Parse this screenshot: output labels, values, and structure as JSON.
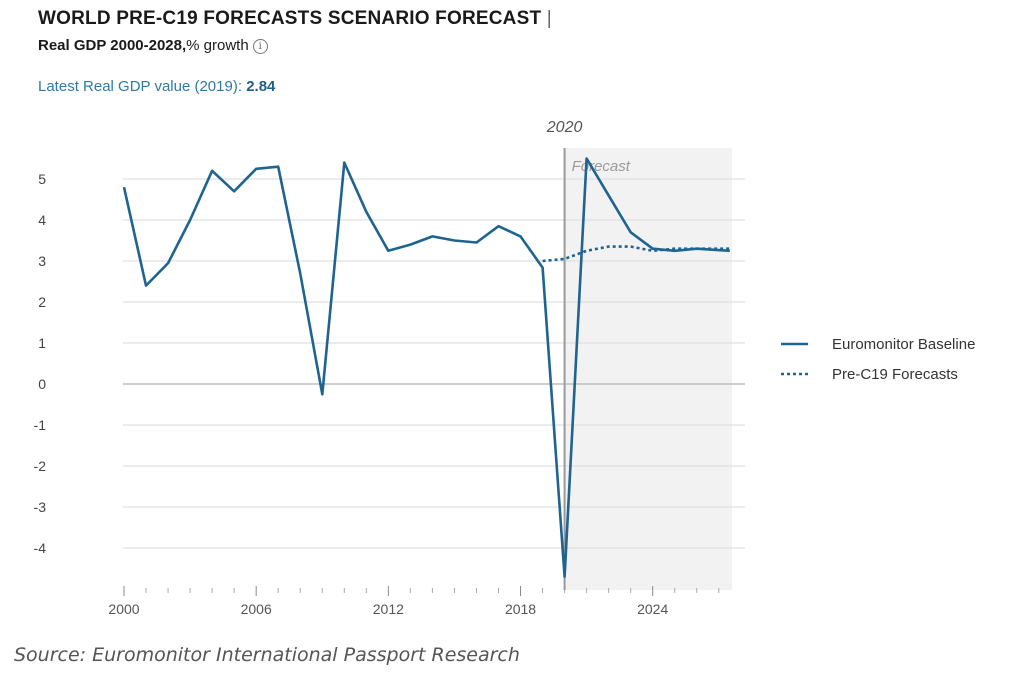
{
  "header": {
    "title": "WORLD PRE-C19 FORECASTS SCENARIO FORECAST",
    "subtitle_bold": "Real GDP 2000-2028,",
    "subtitle_rest": "% growth",
    "info_glyph": "i",
    "latest_label": "Latest Real GDP value (2019):",
    "latest_value": "2.84"
  },
  "source": "Source: Euromonitor International Passport Research",
  "colors": {
    "line": "#1f6391",
    "shade": "#f2f2f2",
    "grid": "#d9d9d9",
    "zero": "#bdbdbd",
    "marker": "#9a9a9a"
  },
  "chart_data": {
    "type": "line",
    "xlim": [
      2000,
      2027.6
    ],
    "ylim": [
      -4.9,
      5.5
    ],
    "x_ticks": [
      2000,
      2006,
      2012,
      2018,
      2024
    ],
    "y_ticks": [
      5,
      4,
      3,
      2,
      1,
      0,
      -1,
      -2,
      -3,
      -4
    ],
    "grid": true,
    "legend_position": "right",
    "annotations": [
      {
        "text": "2020",
        "x": 2020
      },
      {
        "text": "Forecast",
        "x_start": 2020,
        "x_end": 2027.6
      }
    ],
    "series": [
      {
        "name": "Euromonitor Baseline",
        "style": "solid",
        "x": [
          2000,
          2001,
          2002,
          2003,
          2004,
          2005,
          2006,
          2007,
          2008,
          2009,
          2010,
          2011,
          2012,
          2013,
          2014,
          2015,
          2016,
          2017,
          2018,
          2019,
          2020,
          2021,
          2022,
          2023,
          2024,
          2025,
          2026,
          2027.5
        ],
        "values": [
          4.8,
          2.4,
          2.95,
          4.0,
          5.2,
          4.7,
          5.25,
          5.3,
          2.7,
          -0.25,
          5.4,
          4.2,
          3.25,
          3.4,
          3.6,
          3.5,
          3.45,
          3.85,
          3.6,
          2.84,
          -4.7,
          5.5,
          4.6,
          3.7,
          3.3,
          3.25,
          3.3,
          3.25
        ]
      },
      {
        "name": "Pre-C19 Forecasts",
        "style": "dotted",
        "x": [
          2019,
          2020,
          2021,
          2022,
          2023,
          2024,
          2025,
          2026,
          2027.5
        ],
        "values": [
          3.0,
          3.05,
          3.25,
          3.35,
          3.35,
          3.25,
          3.3,
          3.3,
          3.3
        ]
      }
    ]
  }
}
